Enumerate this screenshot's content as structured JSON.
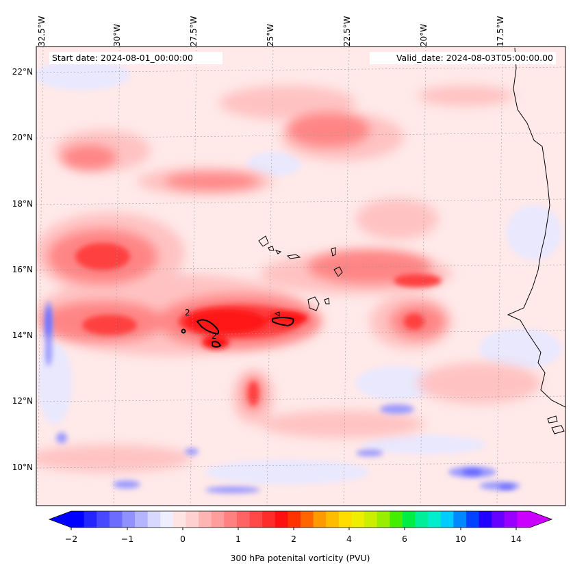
{
  "header": {
    "start_date": "Start date: 2024-08-01_00:00:00",
    "valid_date": "Valid_date: 2024-08-03T05:00:00.00"
  },
  "map": {
    "field": "300 hPa potenital vorticity",
    "unit": "PVU",
    "contour_label": "2",
    "lon_labels": [
      "32.5°W",
      "30°W",
      "27.5°W",
      "25°W",
      "22.5°W",
      "20°W",
      "17.5°W"
    ],
    "lat_labels": [
      "22°N",
      "20°N",
      "18°N",
      "16°N",
      "14°N",
      "12°N",
      "10°N"
    ],
    "features": [
      "Cape Verde Islands",
      "West African coast"
    ]
  },
  "colorbar": {
    "title": "300 hPa potenital vorticity (PVU)",
    "tick_labels": [
      "−2",
      "−1",
      "0",
      "1",
      "2",
      "4",
      "6",
      "10",
      "14"
    ],
    "colors": [
      "#0000ff",
      "#2424ff",
      "#4848ff",
      "#6c6cff",
      "#9090ff",
      "#b4b4ff",
      "#d8d8ff",
      "#eeeeff",
      "#ffe4e4",
      "#ffd0d0",
      "#ffb4b4",
      "#ff9c9c",
      "#ff8080",
      "#ff6464",
      "#ff4848",
      "#ff2c2c",
      "#ff1010",
      "#ff3300",
      "#ff6600",
      "#ff9900",
      "#ffbb00",
      "#ffdd00",
      "#eeee00",
      "#ccee00",
      "#99ee00",
      "#44ee00",
      "#00ee44",
      "#00ee99",
      "#00eecc",
      "#00ccff",
      "#0088ff",
      "#0044ff",
      "#2200ff",
      "#6600ff",
      "#9900ff",
      "#cc00ff"
    ]
  }
}
